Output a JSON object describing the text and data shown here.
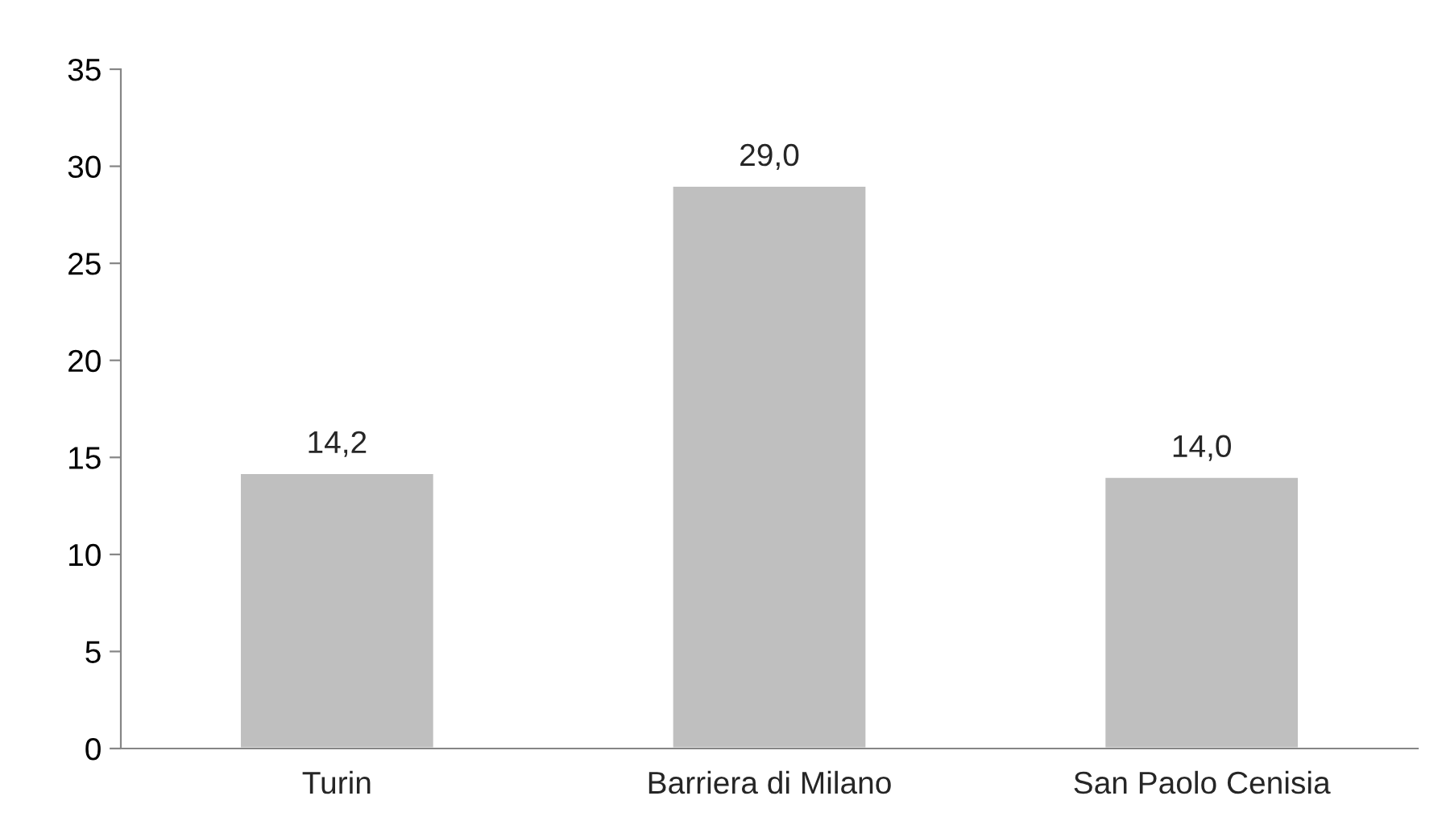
{
  "chart_data": {
    "type": "bar",
    "categories": [
      "Turin",
      "Barriera di Milano",
      "San Paolo Cenisia"
    ],
    "values": [
      14.2,
      29.0,
      14.0
    ],
    "color": "#bfbfbf",
    "value_labels": [
      "14,2",
      "29,0",
      "14,0"
    ],
    "ylim": [
      0,
      35
    ],
    "yticks": [
      0,
      5,
      10,
      15,
      20,
      25,
      30,
      35
    ],
    "grid": false,
    "legend": false
  }
}
